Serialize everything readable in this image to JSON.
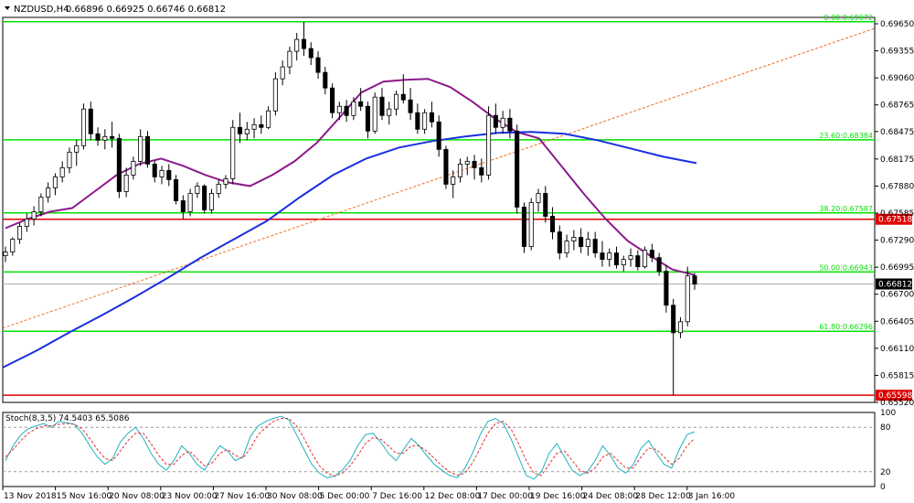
{
  "header": {
    "symbol": "NZDUSD,H4",
    "ohlc": "0.66896 0.66925 0.66746 0.66812"
  },
  "stoch_header": "Stoch(8,3,5) 74.5403 65.5086",
  "colors": {
    "up_candle": "#ffffff",
    "down_candle": "#000000",
    "fib": "#00e000",
    "resistance": "#e00000",
    "ma_fast": "#8b1a8b",
    "ma_slow": "#1a2ee0",
    "trend": "#f07020",
    "stoch_main": "#20b0c0",
    "stoch_signal": "#e03030"
  },
  "chart_data": [
    {
      "type": "candlestick",
      "ylim": [
        0.6552,
        0.6972
      ],
      "price_ticks": [
        "0.69650",
        "0.69355",
        "0.69060",
        "0.68765",
        "0.68475",
        "0.68175",
        "0.67880",
        "0.67585",
        "0.67290",
        "0.66995",
        "0.66700",
        "0.66405",
        "0.66110",
        "0.65815",
        "0.65520"
      ],
      "x_ticks": [
        "13 Nov 2018",
        "15 Nov 16:00",
        "20 Nov 08:00",
        "23 Nov 00:00",
        "27 Nov 16:00",
        "30 Nov 08:00",
        "5 Dec 00:00",
        "7 Dec 16:00",
        "12 Dec 08:00",
        "17 Dec 00:00",
        "19 Dec 16:00",
        "24 Dec 08:00",
        "28 Dec 12:00",
        "3 Jan 16:00"
      ],
      "fib_levels": [
        {
          "label": "0.00:0.69672",
          "price": 0.69672
        },
        {
          "label": "23.60:0.68384",
          "price": 0.68384
        },
        {
          "label": "38.20:0.67587",
          "price": 0.67587
        },
        {
          "label": "50.00:0.66943",
          "price": 0.66943
        },
        {
          "label": "61.80:0.66296",
          "price": 0.66296
        }
      ],
      "resistance_levels": [
        {
          "label": "0.67518",
          "price": 0.67518
        },
        {
          "label": "0.65598",
          "price": 0.65598
        }
      ],
      "current_price": {
        "label": "0.66812",
        "price": 0.66812
      },
      "trend_line": {
        "start_price": 0.6633,
        "end_price": 0.696
      },
      "ma_fast": [
        0.6742,
        0.6752,
        0.676,
        0.6764,
        0.6782,
        0.68,
        0.6812,
        0.6818,
        0.681,
        0.68,
        0.6792,
        0.6788,
        0.68,
        0.6815,
        0.6835,
        0.6862,
        0.689,
        0.6902,
        0.6904,
        0.6905,
        0.6896,
        0.688,
        0.6862,
        0.6847,
        0.684,
        0.681,
        0.678,
        0.6752,
        0.6728,
        0.6712,
        0.6697,
        0.6691
      ],
      "ma_slow": [
        0.659,
        0.6608,
        0.6628,
        0.6647,
        0.6667,
        0.6688,
        0.671,
        0.673,
        0.675,
        0.6776,
        0.68,
        0.6818,
        0.683,
        0.6837,
        0.6842,
        0.6846,
        0.6847,
        0.6845,
        0.6838,
        0.6829,
        0.682,
        0.6813
      ],
      "candles": [
        [
          0.6712,
          0.6722,
          0.6705,
          0.6716
        ],
        [
          0.6716,
          0.6732,
          0.6712,
          0.673
        ],
        [
          0.673,
          0.6748,
          0.6725,
          0.6744
        ],
        [
          0.6744,
          0.6758,
          0.6738,
          0.6752
        ],
        [
          0.6752,
          0.6766,
          0.6745,
          0.676
        ],
        [
          0.676,
          0.678,
          0.6755,
          0.6776
        ],
        [
          0.6776,
          0.6792,
          0.677,
          0.6786
        ],
        [
          0.6786,
          0.6802,
          0.6778,
          0.6798
        ],
        [
          0.6798,
          0.6815,
          0.6792,
          0.6808
        ],
        [
          0.6808,
          0.683,
          0.6802,
          0.6825
        ],
        [
          0.6825,
          0.6838,
          0.681,
          0.6832
        ],
        [
          0.6832,
          0.6878,
          0.6828,
          0.6872
        ],
        [
          0.6872,
          0.688,
          0.6838,
          0.6845
        ],
        [
          0.6845,
          0.6852,
          0.6832,
          0.6838
        ],
        [
          0.6838,
          0.685,
          0.6828,
          0.6842
        ],
        [
          0.6842,
          0.6858,
          0.683,
          0.684
        ],
        [
          0.684,
          0.6845,
          0.6775,
          0.6782
        ],
        [
          0.6782,
          0.6808,
          0.6776,
          0.68
        ],
        [
          0.68,
          0.682,
          0.6795,
          0.6815
        ],
        [
          0.6815,
          0.685,
          0.681,
          0.6842
        ],
        [
          0.6842,
          0.6848,
          0.6808,
          0.6812
        ],
        [
          0.6812,
          0.6816,
          0.6792,
          0.6798
        ],
        [
          0.6798,
          0.681,
          0.679,
          0.6805
        ],
        [
          0.6805,
          0.6812,
          0.6788,
          0.6795
        ],
        [
          0.6795,
          0.68,
          0.6768,
          0.6772
        ],
        [
          0.6772,
          0.6778,
          0.6752,
          0.676
        ],
        [
          0.676,
          0.6785,
          0.6755,
          0.678
        ],
        [
          0.678,
          0.6792,
          0.6775,
          0.6788
        ],
        [
          0.6788,
          0.679,
          0.6758,
          0.6762
        ],
        [
          0.6762,
          0.6785,
          0.6758,
          0.678
        ],
        [
          0.678,
          0.6795,
          0.6775,
          0.679
        ],
        [
          0.679,
          0.68,
          0.6785,
          0.6796
        ],
        [
          0.6796,
          0.686,
          0.679,
          0.6852
        ],
        [
          0.6852,
          0.6868,
          0.6835,
          0.6845
        ],
        [
          0.6845,
          0.6858,
          0.6838,
          0.685
        ],
        [
          0.685,
          0.6862,
          0.684,
          0.6855
        ],
        [
          0.6855,
          0.6865,
          0.6845,
          0.6852
        ],
        [
          0.6852,
          0.6875,
          0.685,
          0.687
        ],
        [
          0.687,
          0.6912,
          0.6865,
          0.6905
        ],
        [
          0.6905,
          0.6925,
          0.6898,
          0.6918
        ],
        [
          0.6918,
          0.694,
          0.691,
          0.6935
        ],
        [
          0.6935,
          0.6955,
          0.6925,
          0.6948
        ],
        [
          0.6948,
          0.6967,
          0.693,
          0.6938
        ],
        [
          0.6938,
          0.6945,
          0.692,
          0.6928
        ],
        [
          0.6928,
          0.6935,
          0.6905,
          0.6912
        ],
        [
          0.6912,
          0.6918,
          0.6888,
          0.6895
        ],
        [
          0.6895,
          0.69,
          0.6862,
          0.6868
        ],
        [
          0.6868,
          0.688,
          0.686,
          0.6875
        ],
        [
          0.6875,
          0.6882,
          0.6858,
          0.6865
        ],
        [
          0.6865,
          0.6885,
          0.686,
          0.688
        ],
        [
          0.688,
          0.6895,
          0.687,
          0.6875
        ],
        [
          0.6875,
          0.688,
          0.684,
          0.6848
        ],
        [
          0.6848,
          0.689,
          0.6845,
          0.6885
        ],
        [
          0.6885,
          0.6895,
          0.686,
          0.6865
        ],
        [
          0.6865,
          0.688,
          0.6855,
          0.6872
        ],
        [
          0.6872,
          0.6892,
          0.6865,
          0.6888
        ],
        [
          0.6888,
          0.691,
          0.6878,
          0.6882
        ],
        [
          0.6882,
          0.6895,
          0.686,
          0.6868
        ],
        [
          0.6868,
          0.6878,
          0.6845,
          0.685
        ],
        [
          0.685,
          0.6872,
          0.6845,
          0.6868
        ],
        [
          0.6868,
          0.688,
          0.6852,
          0.6858
        ],
        [
          0.6858,
          0.6865,
          0.682,
          0.6828
        ],
        [
          0.6828,
          0.6832,
          0.6785,
          0.679
        ],
        [
          0.679,
          0.6805,
          0.6775,
          0.6798
        ],
        [
          0.6798,
          0.6818,
          0.6792,
          0.6812
        ],
        [
          0.6812,
          0.682,
          0.68,
          0.6815
        ],
        [
          0.6815,
          0.6822,
          0.6795,
          0.6808
        ],
        [
          0.6808,
          0.6818,
          0.6792,
          0.68
        ],
        [
          0.68,
          0.6875,
          0.6795,
          0.6865
        ],
        [
          0.6865,
          0.6878,
          0.6845,
          0.6852
        ],
        [
          0.6852,
          0.687,
          0.6845,
          0.6862
        ],
        [
          0.6862,
          0.6872,
          0.684,
          0.6848
        ],
        [
          0.6848,
          0.6855,
          0.6758,
          0.6765
        ],
        [
          0.6765,
          0.677,
          0.6715,
          0.6722
        ],
        [
          0.6722,
          0.6775,
          0.6718,
          0.677
        ],
        [
          0.677,
          0.6785,
          0.676,
          0.678
        ],
        [
          0.678,
          0.6788,
          0.6748,
          0.6755
        ],
        [
          0.6755,
          0.6765,
          0.673,
          0.6738
        ],
        [
          0.6738,
          0.6745,
          0.6708,
          0.6715
        ],
        [
          0.6715,
          0.6735,
          0.671,
          0.6728
        ],
        [
          0.6728,
          0.674,
          0.6718,
          0.6732
        ],
        [
          0.6732,
          0.6742,
          0.6715,
          0.6722
        ],
        [
          0.6722,
          0.6738,
          0.6712,
          0.673
        ],
        [
          0.673,
          0.6738,
          0.671,
          0.6715
        ],
        [
          0.6715,
          0.6728,
          0.67,
          0.6708
        ],
        [
          0.6708,
          0.672,
          0.67,
          0.6715
        ],
        [
          0.6715,
          0.6722,
          0.6698,
          0.6702
        ],
        [
          0.6702,
          0.6712,
          0.6695,
          0.6708
        ],
        [
          0.6708,
          0.672,
          0.67,
          0.6712
        ],
        [
          0.6712,
          0.6718,
          0.6696,
          0.67
        ],
        [
          0.67,
          0.6722,
          0.6698,
          0.6718
        ],
        [
          0.6718,
          0.6725,
          0.6705,
          0.671
        ],
        [
          0.671,
          0.6715,
          0.669,
          0.6695
        ],
        [
          0.6695,
          0.6702,
          0.665,
          0.6658
        ],
        [
          0.6658,
          0.6665,
          0.656,
          0.6628
        ],
        [
          0.6628,
          0.6645,
          0.6622,
          0.664
        ],
        [
          0.664,
          0.67,
          0.6635,
          0.669
        ],
        [
          0.669,
          0.6693,
          0.6675,
          0.6681
        ]
      ]
    },
    {
      "type": "line",
      "name": "Stoch(8,3,5)",
      "ylim": [
        0,
        100
      ],
      "y_ticks": [
        "100",
        "80",
        "20",
        "0"
      ],
      "main": [
        35,
        55,
        70,
        78,
        82,
        85,
        80,
        88,
        86,
        84,
        72,
        55,
        40,
        30,
        38,
        60,
        72,
        80,
        65,
        45,
        30,
        22,
        35,
        55,
        45,
        30,
        22,
        40,
        55,
        48,
        35,
        40,
        68,
        82,
        88,
        92,
        95,
        90,
        70,
        50,
        30,
        18,
        12,
        14,
        22,
        35,
        55,
        70,
        72,
        60,
        45,
        35,
        50,
        65,
        55,
        42,
        30,
        22,
        15,
        12,
        25,
        45,
        70,
        88,
        92,
        85,
        65,
        40,
        15,
        10,
        20,
        45,
        58,
        40,
        22,
        15,
        20,
        35,
        55,
        42,
        25,
        18,
        30,
        52,
        62,
        45,
        30,
        25,
        50,
        70,
        74
      ],
      "signal": [
        40,
        50,
        62,
        72,
        78,
        82,
        82,
        84,
        85,
        84,
        78,
        65,
        50,
        38,
        35,
        48,
        62,
        72,
        72,
        58,
        42,
        30,
        30,
        42,
        48,
        38,
        28,
        32,
        45,
        50,
        42,
        38,
        52,
        70,
        80,
        88,
        92,
        92,
        82,
        65,
        45,
        28,
        18,
        14,
        18,
        28,
        42,
        58,
        66,
        64,
        55,
        45,
        45,
        55,
        55,
        48,
        38,
        28,
        20,
        15,
        18,
        32,
        52,
        72,
        85,
        88,
        78,
        58,
        35,
        18,
        15,
        30,
        45,
        48,
        35,
        22,
        18,
        25,
        40,
        45,
        35,
        25,
        25,
        40,
        52,
        50,
        40,
        30,
        38,
        55,
        65
      ]
    }
  ]
}
